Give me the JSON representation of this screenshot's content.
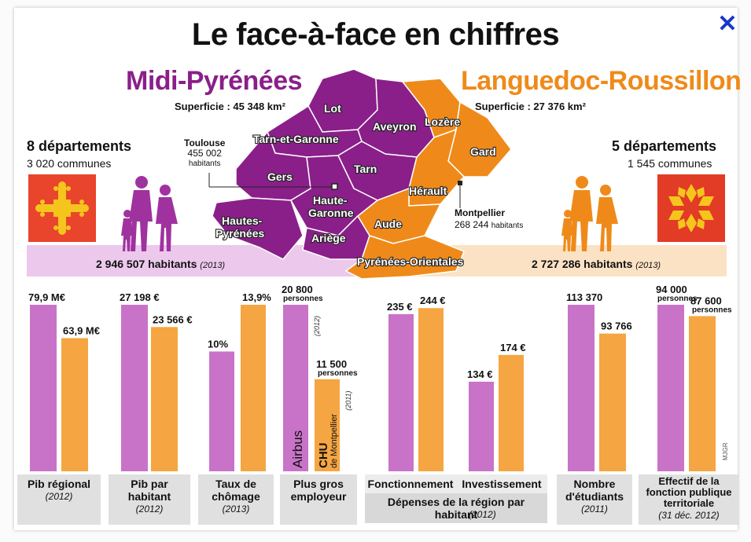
{
  "title": "Le face-à-face en chiffres",
  "close_icon": "close-icon",
  "left": {
    "name": "Midi-Pyrénées",
    "superficie_label": "Superficie : 45 348 km²",
    "departements": "8 départements",
    "communes": "3 020  communes",
    "capital_name": "Toulouse",
    "capital_pop": "455 002",
    "capital_unit": "habitants",
    "population": "2 946 507 habitants",
    "population_year": "(2013)",
    "color": "#8a1f8a"
  },
  "right": {
    "name": "Languedoc-Roussillon",
    "superficie_label": "Superficie : 27 376  km²",
    "departements": "5 départements",
    "communes": "1 545  communes",
    "capital_name": "Montpellier",
    "capital_pop": "268 244",
    "capital_unit": "habitants",
    "population": "2 727 286 habitants",
    "population_year": "(2013)",
    "color": "#ef8a1a"
  },
  "map_labels": {
    "lot": "Lot",
    "aveyron": "Aveyron",
    "tarn_et_garonne": "Tarn-et-Garonne",
    "tarn": "Tarn",
    "gers": "Gers",
    "haute_garonne_1": "Haute-",
    "haute_garonne_2": "Garonne",
    "hautes_pyrenees_1": "Hautes-",
    "hautes_pyrenees_2": "Pyrénées",
    "ariege": "Ariège",
    "lozere": "Lozère",
    "gard": "Gard",
    "herault": "Hérault",
    "aude": "Aude",
    "pyrenees_orientales": "Pyrénées-Orientales"
  },
  "credit": "MJGR",
  "chart_data": {
    "type": "bar",
    "note": "Each category compared on its own scale",
    "series": [
      {
        "name": "Midi-Pyrénées",
        "color": "#c873c8"
      },
      {
        "name": "Languedoc-Roussillon",
        "color": "#f5a541"
      }
    ],
    "categories": [
      {
        "label": "Pib régional",
        "year": "(2012)",
        "values": [
          79.9,
          63.9
        ],
        "value_labels": [
          "79,9 M€",
          "63,9 M€"
        ]
      },
      {
        "label": "Pib par habitant",
        "year": "(2012)",
        "values": [
          27198,
          23566
        ],
        "value_labels": [
          "27 198 €",
          "23 566 €"
        ]
      },
      {
        "label": "Taux de chômage",
        "year": "(2013)",
        "values": [
          10,
          13.9
        ],
        "value_labels": [
          "10%",
          "13,9%"
        ]
      },
      {
        "label": "Plus gros employeur",
        "year": "",
        "values": [
          20800,
          11500
        ],
        "value_labels": [
          "20 800",
          "11 500"
        ],
        "value_units": [
          "personnes",
          "personnes"
        ],
        "value_years": [
          "(2012)",
          "(2011)"
        ],
        "employers": [
          "Airbus",
          "CHU",
          "de Montpellier"
        ]
      },
      {
        "label": "Fonctionnement",
        "year": "",
        "values": [
          235,
          244
        ],
        "value_labels": [
          "235 €",
          "244 €"
        ]
      },
      {
        "label": "Investissement",
        "year": "",
        "values": [
          134,
          174
        ],
        "value_labels": [
          "134 €",
          "174 €"
        ]
      },
      {
        "label": "Nombre d'étudiants",
        "year": "(2011)",
        "values": [
          113370,
          93766
        ],
        "value_labels": [
          "113 370",
          "93 766"
        ]
      },
      {
        "label": "Effectif de la fonction publique territoriale",
        "year": "(31 déc. 2012)",
        "values": [
          94000,
          87600
        ],
        "value_labels": [
          "94 000",
          "87 600"
        ],
        "value_units": [
          "personnes",
          "personnes"
        ]
      }
    ],
    "group_label": "Dépenses de la région par habitant",
    "group_year": "(2012)"
  }
}
